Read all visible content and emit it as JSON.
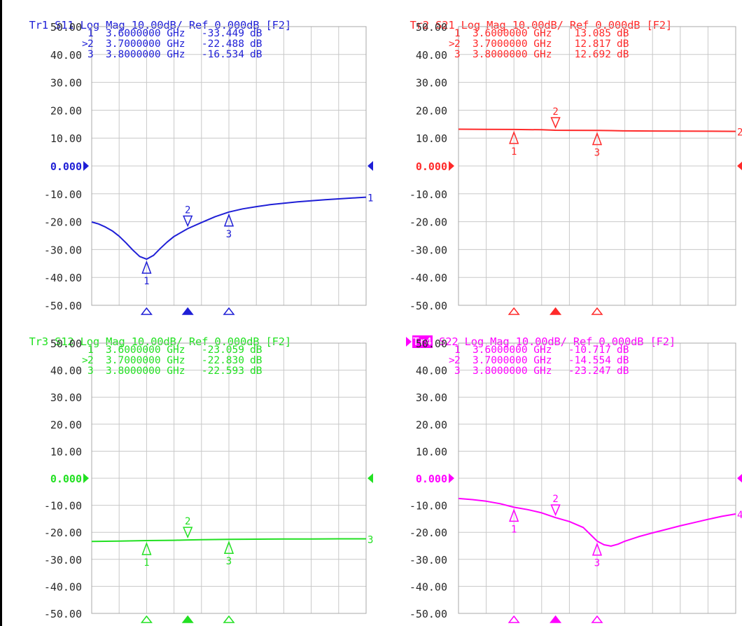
{
  "colors": {
    "tr1": "#1f1fd6",
    "tr2": "#ff2a2a",
    "tr3": "#22e022",
    "tr4": "#ff00ff",
    "grid": "#c8c8c8",
    "axis_text": "#2a2a2a"
  },
  "chart_data": [
    {
      "type": "line",
      "trace": "Tr1",
      "parameter": "S11",
      "format": "Log Mag",
      "scale": "10.00dB/",
      "reference": "Ref 0.000dB",
      "channel_tag": "[F2]",
      "ylim": [
        -50,
        50
      ],
      "y_ticks": [
        "50.00",
        "40.00",
        "30.00",
        "20.00",
        "10.00",
        "0.000",
        "-10.00",
        "-20.00",
        "-30.00",
        "-40.00",
        "-50.00"
      ],
      "ref_label": "0.000",
      "end_label": "1",
      "x": [
        0,
        0.25,
        0.5,
        0.75,
        1,
        1.25,
        1.5,
        1.75,
        2,
        2.25,
        2.5,
        2.75,
        3,
        3.5,
        4,
        4.5,
        5,
        5.5,
        6,
        6.5,
        7,
        7.5,
        8,
        8.5,
        9,
        9.5,
        10
      ],
      "y": [
        -20.1,
        -20.8,
        -21.9,
        -23.3,
        -25.2,
        -27.6,
        -30.2,
        -32.5,
        -33.45,
        -32.1,
        -29.6,
        -27.3,
        -25.3,
        -22.49,
        -20.3,
        -18.2,
        -16.53,
        -15.4,
        -14.6,
        -13.9,
        -13.4,
        -12.9,
        -12.5,
        -12.1,
        -11.8,
        -11.5,
        -11.2
      ],
      "markers": [
        {
          "id": "1",
          "indicator": " ",
          "freq": "3.6000000 GHz",
          "value": "-33.449",
          "unit": "dB",
          "x": 2,
          "y": -33.45,
          "active": false
        },
        {
          "id": "2",
          "indicator": ">",
          "freq": "3.7000000 GHz",
          "value": "-22.488",
          "unit": "dB",
          "x": 3.5,
          "y": -22.49,
          "active": true
        },
        {
          "id": "3",
          "indicator": " ",
          "freq": "3.8000000 GHz",
          "value": "-16.534",
          "unit": "dB",
          "x": 5,
          "y": -16.53,
          "active": false
        }
      ]
    },
    {
      "type": "line",
      "trace": "Tr2",
      "parameter": "S21",
      "format": "Log Mag",
      "scale": "10.00dB/",
      "reference": "Ref 0.000dB",
      "channel_tag": "[F2]",
      "ylim": [
        -50,
        50
      ],
      "y_ticks": [
        "50.00",
        "40.00",
        "30.00",
        "20.00",
        "10.00",
        "0.000",
        "-10.00",
        "-20.00",
        "-30.00",
        "-40.00",
        "-50.00"
      ],
      "ref_label": "0.000",
      "end_label": "2",
      "x": [
        0,
        1,
        2,
        3,
        3.5,
        4,
        5,
        5.5,
        6,
        7,
        8,
        9,
        10
      ],
      "y": [
        13.2,
        13.15,
        13.09,
        13.0,
        12.82,
        12.8,
        12.75,
        12.69,
        12.6,
        12.55,
        12.5,
        12.45,
        12.4
      ],
      "markers": [
        {
          "id": "1",
          "indicator": " ",
          "freq": "3.6000000 GHz",
          "value": "13.085",
          "unit": "dB",
          "x": 2,
          "y": 13.09,
          "active": false
        },
        {
          "id": "2",
          "indicator": ">",
          "freq": "3.7000000 GHz",
          "value": "12.817",
          "unit": "dB",
          "x": 3.5,
          "y": 12.82,
          "active": true
        },
        {
          "id": "3",
          "indicator": " ",
          "freq": "3.8000000 GHz",
          "value": "12.692",
          "unit": "dB",
          "x": 5,
          "y": 12.69,
          "active": false
        }
      ]
    },
    {
      "type": "line",
      "trace": "Tr3",
      "parameter": "S12",
      "format": "Log Mag",
      "scale": "10.00dB/",
      "reference": "Ref 0.000dB",
      "channel_tag": "[F2]",
      "ylim": [
        -50,
        50
      ],
      "y_ticks": [
        "50.00",
        "40.00",
        "30.00",
        "20.00",
        "10.00",
        "0.000",
        "-10.00",
        "-20.00",
        "-30.00",
        "-40.00",
        "-50.00"
      ],
      "ref_label": "0.000",
      "end_label": "3",
      "x": [
        0,
        1,
        2,
        3,
        3.5,
        4,
        5,
        6,
        7,
        8,
        9,
        10
      ],
      "y": [
        -23.4,
        -23.25,
        -23.06,
        -22.95,
        -22.83,
        -22.75,
        -22.59,
        -22.55,
        -22.5,
        -22.45,
        -22.4,
        -22.4
      ],
      "markers": [
        {
          "id": "1",
          "indicator": " ",
          "freq": "3.6000000 GHz",
          "value": "-23.059",
          "unit": "dB",
          "x": 2,
          "y": -23.06,
          "active": false
        },
        {
          "id": "2",
          "indicator": ">",
          "freq": "3.7000000 GHz",
          "value": "-22.830",
          "unit": "dB",
          "x": 3.5,
          "y": -22.83,
          "active": true
        },
        {
          "id": "3",
          "indicator": " ",
          "freq": "3.8000000 GHz",
          "value": "-22.593",
          "unit": "dB",
          "x": 5,
          "y": -22.59,
          "active": false
        }
      ]
    },
    {
      "type": "line",
      "trace": "Tr4",
      "parameter": "S22",
      "format": "Log Mag",
      "scale": "10.00dB/",
      "reference": "Ref 0.000dB",
      "channel_tag": "[F2]",
      "ylim": [
        -50,
        50
      ],
      "y_ticks": [
        "50.00",
        "40.00",
        "30.00",
        "20.00",
        "10.00",
        "0.000",
        "-10.00",
        "-20.00",
        "-30.00",
        "-40.00",
        "-50.00"
      ],
      "ref_label": "0.000",
      "end_label": "4",
      "active_trace": true,
      "x": [
        0,
        0.5,
        1,
        1.5,
        2,
        2.5,
        3,
        3.5,
        4,
        4.5,
        5,
        5.25,
        5.5,
        5.75,
        6,
        6.5,
        7,
        7.5,
        8,
        8.5,
        9,
        9.5,
        10
      ],
      "y": [
        -7.5,
        -7.9,
        -8.5,
        -9.4,
        -10.72,
        -11.6,
        -12.8,
        -14.55,
        -16.0,
        -18.2,
        -23.25,
        -24.6,
        -25.1,
        -24.4,
        -23.3,
        -21.6,
        -20.2,
        -18.9,
        -17.6,
        -16.4,
        -15.2,
        -14.1,
        -13.2
      ],
      "markers": [
        {
          "id": "1",
          "indicator": " ",
          "freq": "3.6000000 GHz",
          "value": "-10.717",
          "unit": "dB",
          "x": 2,
          "y": -10.72,
          "active": false
        },
        {
          "id": "2",
          "indicator": ">",
          "freq": "3.7000000 GHz",
          "value": "-14.554",
          "unit": "dB",
          "x": 3.5,
          "y": -14.55,
          "active": true
        },
        {
          "id": "3",
          "indicator": " ",
          "freq": "3.8000000 GHz",
          "value": "-23.247",
          "unit": "dB",
          "x": 5,
          "y": -23.25,
          "active": false
        }
      ]
    }
  ]
}
